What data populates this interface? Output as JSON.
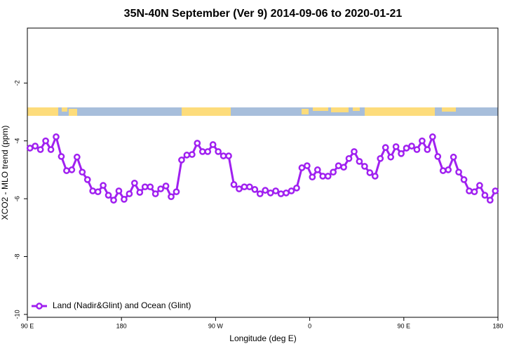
{
  "chart_data": {
    "type": "line",
    "title": "35N-40N September (Ver 9)   2014-09-06 to 2020-01-21",
    "x_label": "Longitude (deg E)",
    "y_label": "XCO2 - MLO trend (ppm)",
    "x": [
      92.5,
      97.5,
      102.5,
      107.5,
      112.5,
      117.5,
      122.5,
      127.5,
      132.5,
      137.5,
      142.5,
      147.5,
      152.5,
      157.5,
      162.5,
      167.5,
      172.5,
      177.5,
      182.5,
      187.5,
      192.5,
      197.5,
      202.5,
      207.5,
      212.5,
      217.5,
      222.5,
      227.5,
      232.5,
      237.5,
      242.5,
      247.5,
      252.5,
      257.5,
      262.5,
      267.5,
      272.5,
      277.5,
      282.5,
      287.5,
      292.5,
      297.5,
      302.5,
      307.5,
      312.5,
      317.5,
      322.5,
      327.5,
      332.5,
      337.5,
      342.5,
      347.5,
      352.5,
      357.5,
      362.5,
      367.5,
      372.5,
      377.5,
      382.5,
      387.5,
      392.5,
      397.5,
      402.5,
      407.5,
      412.5,
      417.5,
      422.5,
      427.5,
      432.5,
      437.5,
      442.5,
      447.5,
      452.5,
      457.5,
      462.5,
      467.5,
      472.5,
      477.5,
      482.5,
      487.5,
      492.5,
      497.5,
      502.5,
      507.5,
      512.5,
      517.5,
      522.5,
      527.5,
      532.5,
      537.5
    ],
    "series": [
      {
        "name": "Land (Nadir&Glint) and Ocean (Glint)",
        "color": "#a020f0",
        "values": [
          -4.25,
          -4.18,
          -4.3,
          -4.0,
          -4.3,
          -3.86,
          -4.54,
          -5.03,
          -5.0,
          -4.56,
          -5.08,
          -5.34,
          -5.73,
          -5.76,
          -5.54,
          -5.88,
          -6.05,
          -5.73,
          -6.02,
          -5.83,
          -5.46,
          -5.78,
          -5.59,
          -5.59,
          -5.83,
          -5.66,
          -5.56,
          -5.93,
          -5.76,
          -4.66,
          -4.49,
          -4.47,
          -4.08,
          -4.37,
          -4.37,
          -4.13,
          -4.37,
          -4.52,
          -4.52,
          -5.51,
          -5.66,
          -5.59,
          -5.59,
          -5.68,
          -5.83,
          -5.71,
          -5.8,
          -5.73,
          -5.83,
          -5.8,
          -5.73,
          -5.63,
          -4.93,
          -4.86,
          -5.25,
          -5.0,
          -5.22,
          -5.22,
          -5.08,
          -4.86,
          -4.91,
          -4.61,
          -4.37,
          -4.71,
          -4.88,
          -5.1,
          -5.22,
          -4.61,
          -4.23,
          -4.56,
          -4.2,
          -4.44,
          -4.25,
          -4.18,
          -4.3,
          -4.0,
          -4.3,
          -3.86,
          -4.54,
          -5.03,
          -5.0,
          -4.56,
          -5.08,
          -5.34,
          -5.73,
          -5.76,
          -5.54,
          -5.88,
          -6.05,
          -5.73
        ]
      }
    ],
    "xlim": [
      90,
      540
    ],
    "xticks": [
      {
        "value": 90,
        "label": "90 E"
      },
      180,
      {
        "value": 270,
        "label": "90 W"
      },
      {
        "value": 360,
        "label": "0"
      },
      {
        "value": 450,
        "label": "90 E"
      },
      {
        "value": 540,
        "label": "180"
      }
    ],
    "ylim": [
      -10.1,
      -0.1
    ],
    "yticks": [
      -10,
      -8,
      -6,
      -4,
      -2
    ],
    "legend": "bottom-left"
  }
}
